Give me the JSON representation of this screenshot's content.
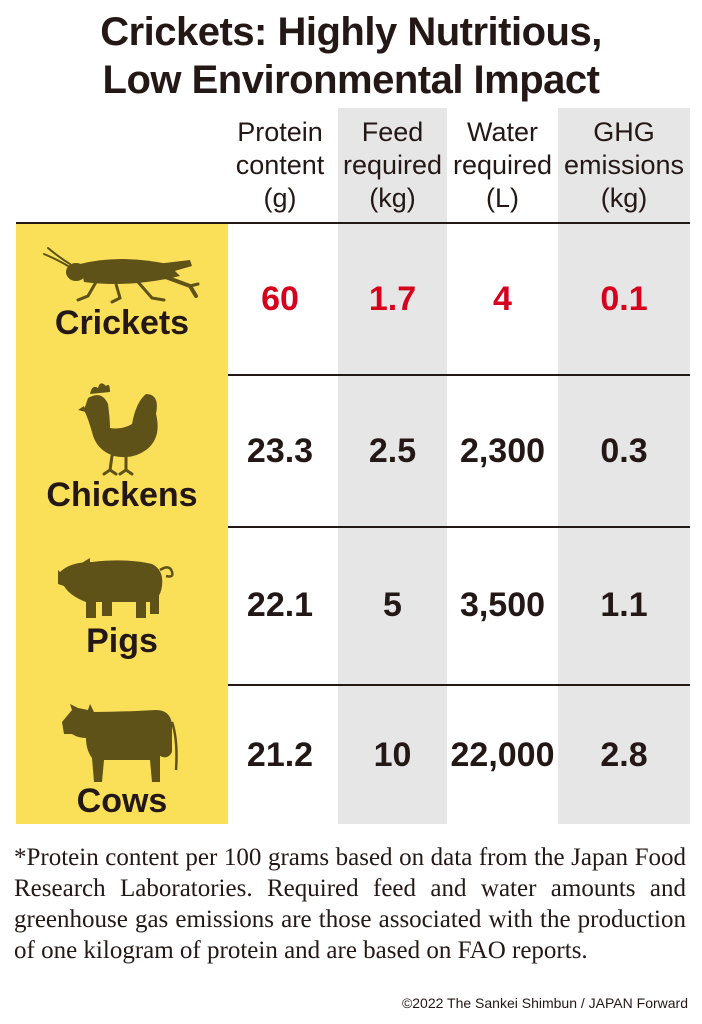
{
  "title_line1": "Crickets: Highly Nutritious,",
  "title_line2": "Low Environmental Impact",
  "chart_data": {
    "type": "table",
    "columns": [
      {
        "label_lines": [
          "Protein",
          "content",
          "(g)"
        ]
      },
      {
        "label_lines": [
          "Feed",
          "required",
          "(kg)"
        ]
      },
      {
        "label_lines": [
          "Water",
          "required",
          "(L)"
        ]
      },
      {
        "label_lines": [
          "GHG",
          "emissions",
          "(kg)"
        ]
      }
    ],
    "rows": [
      {
        "name": "Crickets",
        "icon": "cricket-icon",
        "values": [
          "60",
          "1.7",
          "4",
          "0.1"
        ]
      },
      {
        "name": "Chickens",
        "icon": "chicken-icon",
        "values": [
          "23.3",
          "2.5",
          "2,300",
          "0.3"
        ]
      },
      {
        "name": "Pigs",
        "icon": "pig-icon",
        "values": [
          "22.1",
          "5",
          "3,500",
          "1.1"
        ]
      },
      {
        "name": "Cows",
        "icon": "cow-icon",
        "values": [
          "21.2",
          "10",
          "22,000",
          "2.8"
        ]
      }
    ],
    "highlight_color": "#d7001d",
    "row_label_color": "#fadf58",
    "shaded_column_color": "#e6e6e6"
  },
  "footnote": "*Protein content per 100 grams based on data from the Japan Food Research Laboratories. Required feed and water amounts and greenhouse gas emissions are those associated with the production of one kilogram of protein and are based on FAO reports.",
  "copyright": "©2022 The Sankei Shimbun / JAPAN Forward"
}
